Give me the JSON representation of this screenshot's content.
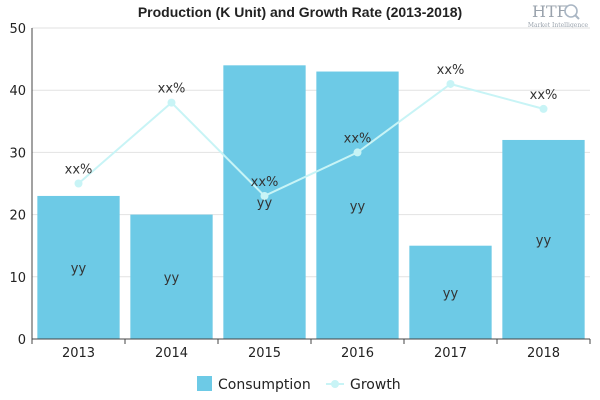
{
  "chart_data": {
    "type": "bar",
    "title": "Production (K Unit) and Growth Rate (2013-2018)",
    "categories": [
      "2013",
      "2014",
      "2015",
      "2016",
      "2017",
      "2018"
    ],
    "ylim": [
      0,
      50
    ],
    "yticks": [
      0,
      10,
      20,
      30,
      40,
      50
    ],
    "grid": true,
    "legend_position": "bottom",
    "series": [
      {
        "name": "Consumption",
        "kind": "bar",
        "color": "#6dcae6",
        "values": [
          23,
          20,
          44,
          43,
          15,
          32
        ],
        "labels": [
          "yy",
          "yy",
          "yy",
          "yy",
          "yy",
          "yy"
        ]
      },
      {
        "name": "Growth",
        "kind": "line",
        "color": "#c8f4f6",
        "values": [
          25,
          38,
          23,
          30,
          41,
          37
        ],
        "labels": [
          "xx%",
          "xx%",
          "xx%",
          "xx%",
          "xx%",
          "xx%"
        ]
      }
    ]
  },
  "logo": {
    "text": "HTF",
    "subtext": "Market Intelligence",
    "icon": "magnifier-globe-icon"
  }
}
